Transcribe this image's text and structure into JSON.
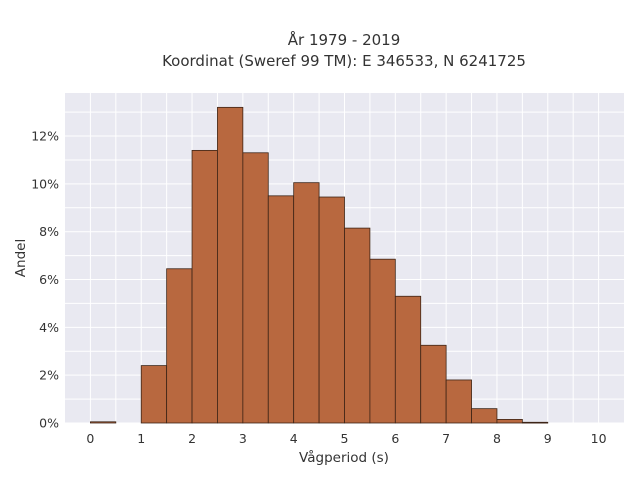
{
  "chart_data": {
    "type": "bar",
    "title_line1": "År 1979 - 2019",
    "title_line2": "Koordinat (Sweref 99 TM): E 346533, N 6241725",
    "xlabel": "Vågperiod (s)",
    "ylabel": "Andel",
    "bin_width": 0.5,
    "bin_starts": [
      0,
      0.5,
      1,
      1.5,
      2,
      2.5,
      3,
      3.5,
      4,
      4.5,
      5,
      5.5,
      6,
      6.5,
      7,
      7.5,
      8,
      8.5,
      9,
      9.5
    ],
    "values": [
      0.05,
      0,
      2.4,
      6.45,
      11.4,
      13.2,
      11.3,
      9.5,
      10.05,
      9.45,
      8.15,
      6.85,
      5.3,
      3.25,
      1.8,
      0.6,
      0.15,
      0.03,
      0,
      0
    ],
    "xlim": [
      -0.5,
      10.5
    ],
    "ylim": [
      0,
      13.8
    ],
    "xticks": [
      0,
      1,
      2,
      3,
      4,
      5,
      6,
      7,
      8,
      9,
      10
    ],
    "xtick_labels": [
      "0",
      "1",
      "2",
      "3",
      "4",
      "5",
      "6",
      "7",
      "8",
      "9",
      "10"
    ],
    "yticks": [
      0,
      2,
      4,
      6,
      8,
      10,
      12
    ],
    "ytick_labels": [
      "0%",
      "2%",
      "4%",
      "6%",
      "8%",
      "10%",
      "12%"
    ],
    "grid": true,
    "colors": {
      "bar_fill": "#b8683f",
      "bar_stroke": "#3d2416",
      "plot_background": "#e9e9f1",
      "grid": "#ffffff"
    }
  }
}
